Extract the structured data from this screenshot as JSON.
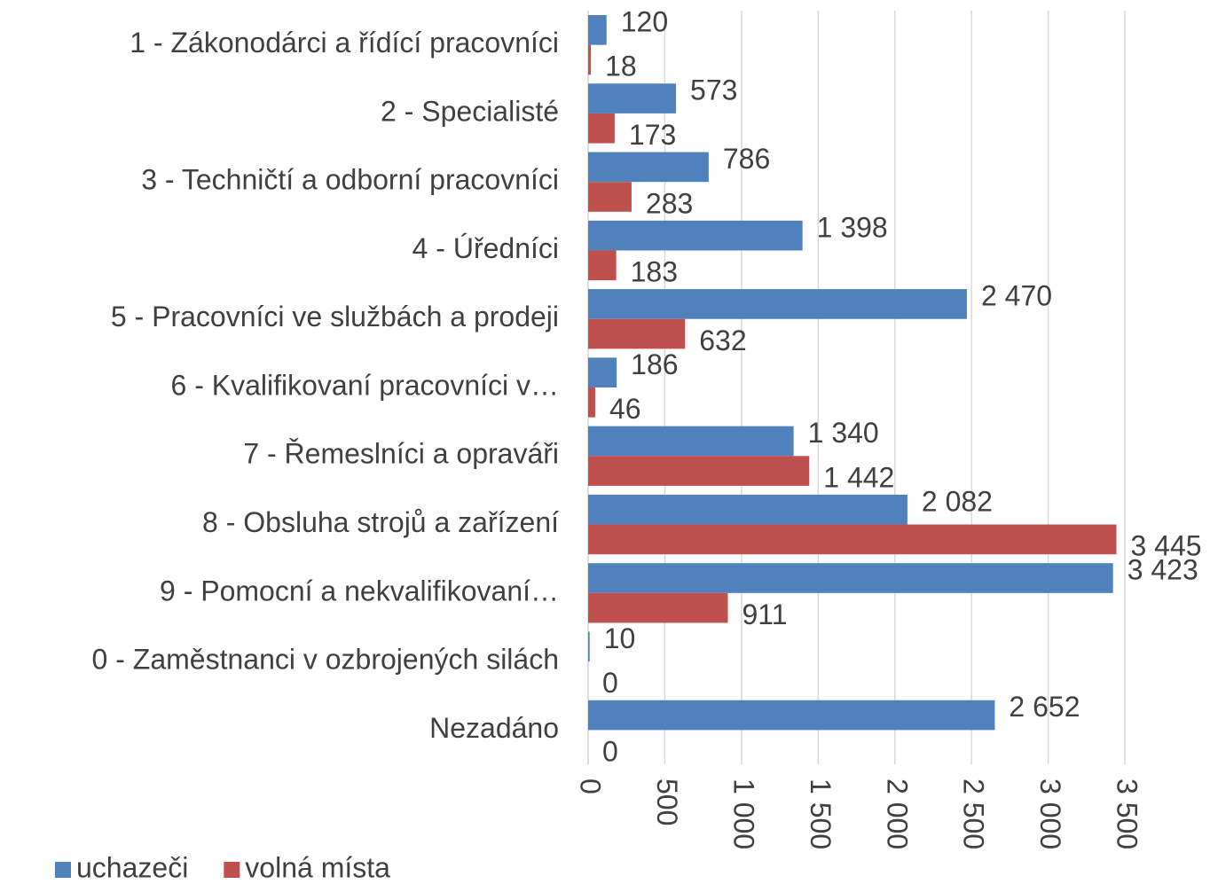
{
  "chart_data": {
    "type": "hbar",
    "categories": [
      "1 - Zákonodárci a řídící pracovníci",
      "2 - Specialisté",
      "3 - Techničtí a odborní pracovníci",
      "4 - Úředníci",
      "5 - Pracovníci ve službách a prodeji",
      "6 - Kvalifikovaní pracovníci v…",
      "7 - Řemeslníci a opraváři",
      "8 - Obsluha strojů a zařízení",
      "9 - Pomocní a nekvalifikovaní…",
      "0 - Zaměstnanci v ozbrojených silách",
      "Nezadáno"
    ],
    "series": [
      {
        "name": "uchazeči",
        "color": "#4f81bd",
        "values": [
          120,
          573,
          786,
          1398,
          2470,
          186,
          1340,
          2082,
          3423,
          10,
          2652
        ],
        "value_labels": [
          "120",
          "573",
          "786",
          "1 398",
          "2 470",
          "186",
          "1 340",
          "2 082",
          "3 423",
          "10",
          "2 652"
        ]
      },
      {
        "name": "volná místa",
        "color": "#c0504d",
        "values": [
          18,
          173,
          283,
          183,
          632,
          46,
          1442,
          3445,
          911,
          0,
          0
        ],
        "value_labels": [
          "18",
          "173",
          "283",
          "183",
          "632",
          "46",
          "1 442",
          "3 445",
          "911",
          "0",
          "0"
        ]
      }
    ],
    "xlim": [
      0,
      3500
    ],
    "xticks": [
      0,
      500,
      {
        "value": 1000,
        "label": "1 000"
      },
      {
        "value": 1500,
        "label": "1 500"
      },
      {
        "value": 2000,
        "label": "2 000"
      },
      {
        "value": 2500,
        "label": "2 500"
      },
      {
        "value": 3000,
        "label": "3 000"
      },
      {
        "value": 3500,
        "label": "3 500"
      }
    ],
    "grid": true,
    "legend": "bottom-left"
  }
}
